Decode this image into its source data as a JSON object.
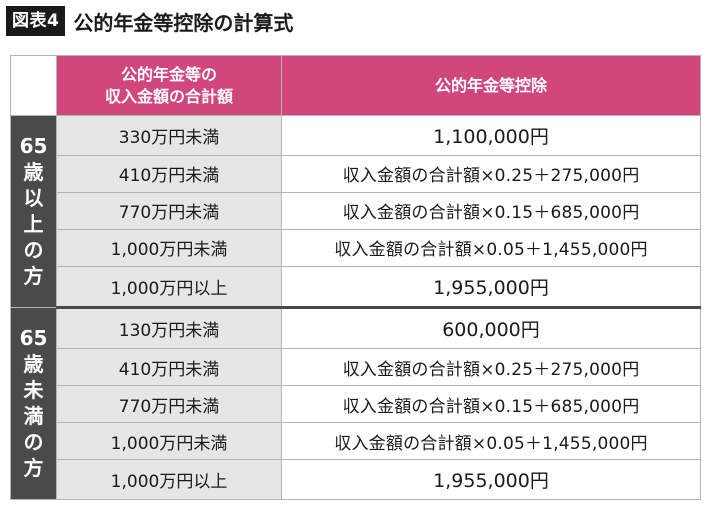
{
  "header": {
    "badge": "図表4",
    "title": "公的年金等控除の計算式"
  },
  "table": {
    "col_headers": {
      "income_line1": "公的年金等の",
      "income_line2": "収入金額の合計額",
      "deduction": "公的年金等控除"
    },
    "groups": [
      {
        "label_chars": [
          "65",
          "歳",
          "以",
          "上",
          "の",
          "方"
        ],
        "rows": [
          {
            "range": "330万円未満",
            "deduction": "1,100,000円",
            "kind": "fixed"
          },
          {
            "range": "410万円未満",
            "deduction": "収入金額の合計額×0.25＋275,000円",
            "kind": "formula"
          },
          {
            "range": "770万円未満",
            "deduction": "収入金額の合計額×0.15＋685,000円",
            "kind": "formula"
          },
          {
            "range": "1,000万円未満",
            "deduction": "収入金額の合計額×0.05＋1,455,000円",
            "kind": "formula"
          },
          {
            "range": "1,000万円以上",
            "deduction": "1,955,000円",
            "kind": "fixed"
          }
        ]
      },
      {
        "label_chars": [
          "65",
          "歳",
          "未",
          "満",
          "の",
          "方"
        ],
        "rows": [
          {
            "range": "130万円未満",
            "deduction": "600,000円",
            "kind": "fixed"
          },
          {
            "range": "410万円未満",
            "deduction": "収入金額の合計額×0.25＋275,000円",
            "kind": "formula"
          },
          {
            "range": "770万円未満",
            "deduction": "収入金額の合計額×0.15＋685,000円",
            "kind": "formula"
          },
          {
            "range": "1,000万円未満",
            "deduction": "収入金額の合計額×0.05＋1,455,000円",
            "kind": "formula"
          },
          {
            "range": "1,000万円以上",
            "deduction": "1,955,000円",
            "kind": "fixed"
          }
        ]
      }
    ]
  },
  "colors": {
    "header_pink": "#d1467d",
    "group_dark": "#4a4a4a",
    "range_gray": "#e6e6e6"
  }
}
